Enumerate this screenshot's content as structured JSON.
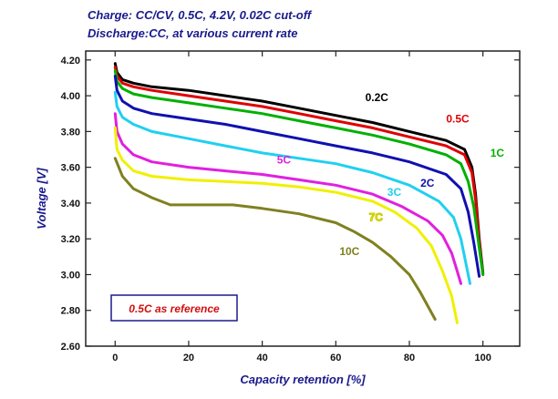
{
  "captions": {
    "line1": "Charge: CC/CV, 0.5C, 4.2V, 0.02C cut-off",
    "line2": "Discharge:CC, at various current rate"
  },
  "chart_data": {
    "type": "line",
    "xlabel": "Capacity retention [%]",
    "ylabel": "Voltage [V]",
    "xlim": [
      -8,
      110
    ],
    "ylim": [
      2.6,
      4.25
    ],
    "xticks": [
      0,
      20,
      40,
      60,
      80,
      100
    ],
    "yticks": [
      2.6,
      2.8,
      3.0,
      3.2,
      3.4,
      3.6,
      3.8,
      4.0,
      4.2
    ],
    "annotation": "0.5C as reference",
    "series": [
      {
        "name": "0.2C",
        "color": "#000000",
        "label_pos": [
          68,
          3.97
        ],
        "x": [
          0,
          0.5,
          2,
          5,
          10,
          20,
          30,
          40,
          50,
          60,
          70,
          80,
          90,
          95,
          97,
          98,
          99,
          100
        ],
        "y": [
          4.18,
          4.13,
          4.09,
          4.07,
          4.05,
          4.03,
          4.0,
          3.97,
          3.93,
          3.89,
          3.85,
          3.8,
          3.75,
          3.7,
          3.6,
          3.45,
          3.2,
          3.01
        ]
      },
      {
        "name": "0.5C",
        "color": "#e00000",
        "label_pos": [
          90,
          3.85
        ],
        "x": [
          0,
          0.5,
          2,
          5,
          10,
          20,
          30,
          40,
          50,
          60,
          70,
          80,
          90,
          95,
          97,
          98,
          99,
          100
        ],
        "y": [
          4.16,
          4.11,
          4.07,
          4.05,
          4.03,
          4.0,
          3.97,
          3.94,
          3.9,
          3.86,
          3.82,
          3.77,
          3.72,
          3.67,
          3.57,
          3.42,
          3.18,
          3.0
        ]
      },
      {
        "name": "1C",
        "color": "#00b000",
        "label_pos": [
          102,
          3.66
        ],
        "x": [
          0,
          0.5,
          2,
          5,
          10,
          20,
          30,
          40,
          50,
          60,
          70,
          80,
          90,
          94,
          96,
          97.5,
          99,
          100
        ],
        "y": [
          4.14,
          4.08,
          4.04,
          4.01,
          3.99,
          3.96,
          3.93,
          3.9,
          3.86,
          3.82,
          3.78,
          3.73,
          3.67,
          3.62,
          3.52,
          3.38,
          3.15,
          3.0
        ]
      },
      {
        "name": "2C",
        "color": "#1010b0",
        "label_pos": [
          83,
          3.49
        ],
        "x": [
          0,
          0.5,
          2,
          5,
          10,
          20,
          30,
          40,
          50,
          60,
          70,
          80,
          90,
          94,
          96,
          97.5,
          99
        ],
        "y": [
          4.11,
          4.03,
          3.97,
          3.93,
          3.9,
          3.87,
          3.84,
          3.8,
          3.76,
          3.72,
          3.68,
          3.63,
          3.56,
          3.48,
          3.35,
          3.18,
          2.99
        ]
      },
      {
        "name": "3C",
        "color": "#20d0f0",
        "label_pos": [
          74,
          3.44
        ],
        "x": [
          0,
          0.5,
          2,
          5,
          10,
          20,
          30,
          40,
          50,
          60,
          70,
          80,
          88,
          92,
          94,
          95.5,
          96.5
        ],
        "y": [
          4.02,
          3.94,
          3.88,
          3.84,
          3.8,
          3.76,
          3.72,
          3.68,
          3.65,
          3.62,
          3.57,
          3.5,
          3.41,
          3.32,
          3.2,
          3.05,
          2.95
        ]
      },
      {
        "name": "5C",
        "color": "#e020e0",
        "label_pos": [
          44,
          3.62
        ],
        "x": [
          0,
          0.5,
          2,
          5,
          10,
          20,
          30,
          40,
          50,
          60,
          70,
          78,
          85,
          89,
          91.5,
          93,
          94
        ],
        "y": [
          3.9,
          3.8,
          3.73,
          3.67,
          3.63,
          3.6,
          3.58,
          3.56,
          3.53,
          3.5,
          3.45,
          3.38,
          3.3,
          3.22,
          3.12,
          3.02,
          2.95
        ]
      },
      {
        "name": "7C",
        "color": "#f0f000",
        "label_pos": [
          69,
          3.3
        ],
        "x": [
          0,
          0.5,
          2,
          5,
          10,
          20,
          30,
          40,
          50,
          60,
          70,
          76,
          82,
          86,
          89,
          91.5,
          93
        ],
        "y": [
          3.82,
          3.7,
          3.64,
          3.58,
          3.55,
          3.53,
          3.52,
          3.51,
          3.49,
          3.46,
          3.41,
          3.35,
          3.26,
          3.16,
          3.02,
          2.88,
          2.73
        ]
      },
      {
        "name": "10C",
        "color": "#808020",
        "label_pos": [
          61,
          3.11
        ],
        "x": [
          0,
          2,
          5,
          10,
          15,
          20,
          32,
          40,
          50,
          60,
          65,
          70,
          75,
          80,
          83,
          87
        ],
        "y": [
          3.65,
          3.55,
          3.48,
          3.43,
          3.39,
          3.39,
          3.39,
          3.37,
          3.34,
          3.29,
          3.24,
          3.18,
          3.1,
          3.0,
          2.9,
          2.75
        ]
      }
    ]
  }
}
